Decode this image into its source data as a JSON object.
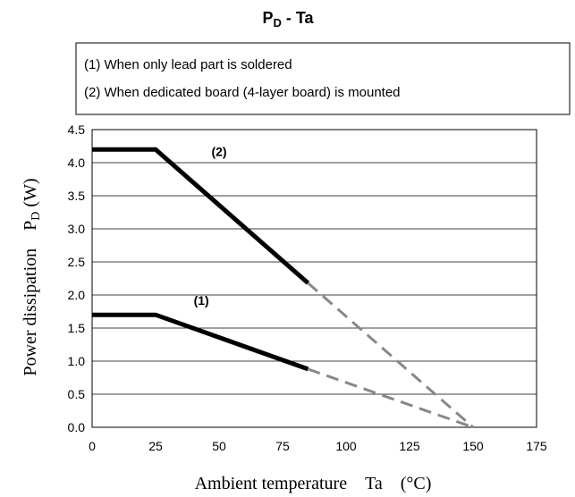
{
  "chart_data": {
    "type": "line",
    "title": [
      "P",
      "D",
      " - Ta"
    ],
    "legend_box": [
      "(1) When only lead part is soldered",
      "(2) When dedicated board (4-layer board) is mounted"
    ],
    "x_label": "Ambient temperature　Ta　(°C)",
    "y_label": [
      "Power dissipation　P",
      "D",
      " (W)"
    ],
    "xlim": [
      0,
      175
    ],
    "ylim": [
      0,
      4.5
    ],
    "xticks": [
      0,
      25,
      50,
      75,
      100,
      125,
      150,
      175
    ],
    "yticks": [
      {
        "value": 0,
        "label": "0.0"
      },
      0.5,
      {
        "value": 1,
        "label": "1.0"
      },
      1.5,
      {
        "value": 2,
        "label": "2.0"
      },
      2.5,
      {
        "value": 3,
        "label": "3.0"
      },
      3.5,
      {
        "value": 4,
        "label": "4.0"
      },
      4.5
    ],
    "grid": true,
    "series": [
      {
        "name": "(2)",
        "label_at": [
          47,
          4.1
        ],
        "color": "#000000",
        "dashed": false,
        "x": [
          0,
          25,
          85
        ],
        "values": [
          4.2,
          4.2,
          2.18
        ]
      },
      {
        "color": "#888888",
        "dashed": true,
        "x": [
          85,
          150
        ],
        "values": [
          2.18,
          0
        ]
      },
      {
        "name": "(1)",
        "label_at": [
          40,
          1.85
        ],
        "color": "#000000",
        "dashed": false,
        "x": [
          0,
          25,
          85
        ],
        "values": [
          1.7,
          1.7,
          0.88
        ]
      },
      {
        "color": "#888888",
        "dashed": true,
        "x": [
          85,
          150
        ],
        "values": [
          0.88,
          0
        ]
      }
    ]
  }
}
